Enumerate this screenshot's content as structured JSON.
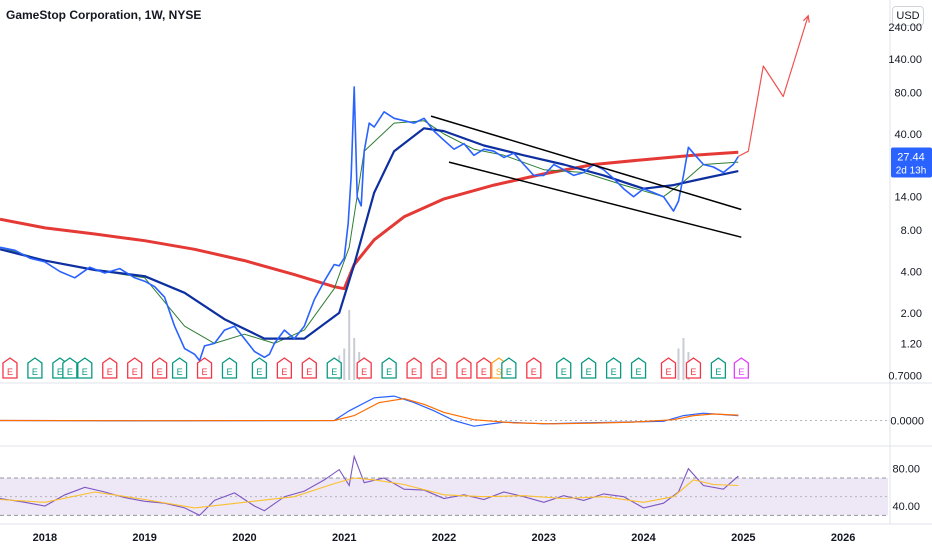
{
  "header": {
    "title": "GameStop Corporation, 1W, NYSE",
    "currency_label": "USD"
  },
  "price_badge": {
    "price": "27.44",
    "countdown": "2d 13h",
    "color": "#2962ff"
  },
  "colors": {
    "price_line": "#2962ff",
    "ma_fast": "#2e7d32",
    "ma_mid": "#0d2fa0",
    "ma_slow": "#e53935",
    "channel": "#000000",
    "projection": "#ef5350",
    "macd": "#2962ff",
    "signal": "#ff6d00",
    "rsi": "#7e57c2",
    "rsi_ma": "#fbc02d",
    "rsi_band": "#ede7f6",
    "earnings_red": "#f23645",
    "earnings_green": "#089981",
    "earnings_purple": "#e040fb",
    "split_yellow": "#f9a825"
  },
  "chart_data": [
    {
      "type": "line",
      "panel": "price",
      "scale": "log",
      "x_ticks": [
        "2018",
        "2019",
        "2020",
        "2021",
        "2022",
        "2023",
        "2024",
        "2025",
        "2026"
      ],
      "x_tick_values": [
        2018,
        2019,
        2020,
        2021,
        2022,
        2023,
        2024,
        2025,
        2026
      ],
      "y_ticks": [
        "240.00",
        "140.00",
        "80.00",
        "40.00",
        "14.00",
        "8.00",
        "4.00",
        "2.00",
        "1.20",
        "0.7000"
      ],
      "y_tick_values": [
        240,
        140,
        80,
        40,
        14,
        8,
        4,
        2,
        1.2,
        0.7
      ],
      "ylim": [
        0.65,
        330
      ],
      "xlim": [
        2017.55,
        2026.45
      ],
      "series": [
        {
          "key": "price",
          "x": [
            2017.55,
            2017.7,
            2017.85,
            2018.0,
            2018.15,
            2018.3,
            2018.45,
            2018.6,
            2018.75,
            2018.9,
            2019.0,
            2019.1,
            2019.2,
            2019.3,
            2019.4,
            2019.5,
            2019.55,
            2019.6,
            2019.7,
            2019.8,
            2019.9,
            2020.0,
            2020.1,
            2020.2,
            2020.25,
            2020.3,
            2020.4,
            2020.5,
            2020.6,
            2020.7,
            2020.8,
            2020.9,
            2020.95,
            2021.0,
            2021.04,
            2021.07,
            2021.1,
            2021.13,
            2021.17,
            2021.2,
            2021.25,
            2021.3,
            2021.4,
            2021.5,
            2021.6,
            2021.7,
            2021.8,
            2021.9,
            2022.0,
            2022.1,
            2022.2,
            2022.3,
            2022.4,
            2022.5,
            2022.6,
            2022.7,
            2022.8,
            2022.9,
            2023.0,
            2023.1,
            2023.2,
            2023.3,
            2023.4,
            2023.5,
            2023.6,
            2023.7,
            2023.8,
            2023.9,
            2024.0,
            2024.1,
            2024.2,
            2024.3,
            2024.35,
            2024.4,
            2024.45,
            2024.5,
            2024.6,
            2024.7,
            2024.8,
            2024.9,
            2024.95
          ],
          "y": [
            6.0,
            5.7,
            5.0,
            4.7,
            4.0,
            3.6,
            4.3,
            3.9,
            4.2,
            3.6,
            3.4,
            3.1,
            2.6,
            1.6,
            1.1,
            1.0,
            0.9,
            1.15,
            1.2,
            1.5,
            1.6,
            1.3,
            1.05,
            0.95,
            1.0,
            1.2,
            1.5,
            1.3,
            1.6,
            2.5,
            3.4,
            4.5,
            4.4,
            5.0,
            9.0,
            20.0,
            88.0,
            14.0,
            12.0,
            30.0,
            48.0,
            45.0,
            58.0,
            52.0,
            50.0,
            48.0,
            52.0,
            42.0,
            36.0,
            31.0,
            34.0,
            28.0,
            31.0,
            30.0,
            27.0,
            29.0,
            24.0,
            20.0,
            20.0,
            24.0,
            22.0,
            20.0,
            21.0,
            24.0,
            22.0,
            19.0,
            16.0,
            14.0,
            16.0,
            15.0,
            14.0,
            11.0,
            13.0,
            20.0,
            32.0,
            29.0,
            24.0,
            23.0,
            21.0,
            24.0,
            27.44
          ]
        },
        {
          "key": "ma_fast",
          "x": [
            2017.55,
            2018.0,
            2018.5,
            2019.0,
            2019.4,
            2019.7,
            2020.0,
            2020.3,
            2020.6,
            2020.9,
            2021.05,
            2021.2,
            2021.5,
            2021.8,
            2022.0,
            2022.3,
            2022.6,
            2023.0,
            2023.4,
            2023.8,
            2024.2,
            2024.4,
            2024.6,
            2024.95
          ],
          "y": [
            6.0,
            4.8,
            4.1,
            3.6,
            1.6,
            1.2,
            1.4,
            1.2,
            1.5,
            3.0,
            6.0,
            30.0,
            48.0,
            50.0,
            40.0,
            31.0,
            28.0,
            22.0,
            21.0,
            17.0,
            14.0,
            18.0,
            24.0,
            25.0
          ]
        },
        {
          "key": "ma_mid",
          "x": [
            2017.55,
            2018.0,
            2018.5,
            2019.0,
            2019.4,
            2019.8,
            2020.2,
            2020.6,
            2020.95,
            2021.1,
            2021.3,
            2021.5,
            2021.8,
            2022.0,
            2022.4,
            2022.8,
            2023.2,
            2023.6,
            2024.0,
            2024.3,
            2024.6,
            2024.95
          ],
          "y": [
            5.8,
            4.8,
            4.1,
            3.7,
            2.8,
            1.8,
            1.3,
            1.3,
            2.0,
            4.5,
            15.0,
            30.0,
            44.0,
            42.0,
            33.0,
            28.0,
            24.0,
            20.0,
            16.0,
            17.0,
            19.0,
            21.5
          ]
        },
        {
          "key": "ma_slow",
          "x": [
            2017.55,
            2018.0,
            2018.5,
            2019.0,
            2019.5,
            2020.0,
            2020.5,
            2020.9,
            2021.0,
            2021.1,
            2021.3,
            2021.6,
            2022.0,
            2022.5,
            2023.0,
            2023.5,
            2024.0,
            2024.5,
            2024.95
          ],
          "y": [
            9.6,
            8.3,
            7.5,
            6.7,
            5.8,
            4.8,
            3.8,
            3.1,
            3.0,
            4.5,
            6.8,
            10.0,
            13.5,
            17.0,
            20.5,
            24.0,
            26.0,
            28.0,
            29.5
          ]
        },
        {
          "key": "channel_upper",
          "x": [
            2021.87,
            2024.98
          ],
          "y": [
            54.0,
            11.3
          ]
        },
        {
          "key": "channel_lower",
          "x": [
            2022.05,
            2024.98
          ],
          "y": [
            25.0,
            7.1
          ]
        },
        {
          "key": "projection",
          "x": [
            2024.95,
            2025.05,
            2025.2,
            2025.4,
            2025.65
          ],
          "y": [
            27.5,
            30.0,
            125.0,
            75.0,
            290.0
          ]
        }
      ]
    },
    {
      "type": "bar",
      "panel": "volume",
      "x": [
        2020.95,
        2021.0,
        2021.05,
        2021.1,
        2021.15,
        2024.35,
        2024.4,
        2024.45
      ],
      "values": [
        0.35,
        0.45,
        1.0,
        0.6,
        0.4,
        0.45,
        0.6,
        0.4
      ]
    },
    {
      "type": "line",
      "panel": "macd",
      "y_ticks": [
        "0.0000"
      ],
      "y_tick_values": [
        0
      ],
      "ylim": [
        -12,
        20
      ],
      "series": [
        {
          "key": "macd",
          "x": [
            2017.55,
            2019.0,
            2020.9,
            2021.05,
            2021.3,
            2021.5,
            2021.7,
            2021.9,
            2022.1,
            2022.3,
            2022.6,
            2023.0,
            2023.4,
            2023.8,
            2024.2,
            2024.4,
            2024.6,
            2024.95
          ],
          "y": [
            0,
            -0.2,
            0,
            6.0,
            14.0,
            15.0,
            11.0,
            6.0,
            0.0,
            -3.5,
            -1.0,
            -2.0,
            -1.5,
            -1.0,
            -0.5,
            3.0,
            4.5,
            3.0
          ]
        },
        {
          "key": "signal",
          "x": [
            2017.55,
            2019.0,
            2020.9,
            2021.1,
            2021.35,
            2021.6,
            2021.8,
            2022.0,
            2022.3,
            2022.7,
            2023.1,
            2023.5,
            2023.9,
            2024.3,
            2024.5,
            2024.7,
            2024.95
          ],
          "y": [
            0,
            -0.1,
            0,
            3.0,
            11.0,
            13.5,
            10.0,
            5.0,
            0.5,
            -1.5,
            -2.0,
            -1.6,
            -1.0,
            0.5,
            3.0,
            4.0,
            3.3
          ]
        }
      ]
    },
    {
      "type": "line",
      "panel": "rsi",
      "y_ticks": [
        "80.00",
        "40.00"
      ],
      "y_tick_values": [
        80,
        40
      ],
      "ylim": [
        25,
        100
      ],
      "band": [
        30,
        70
      ],
      "midline": 50,
      "series": [
        {
          "key": "rsi",
          "x": [
            2017.55,
            2017.8,
            2018.0,
            2018.2,
            2018.4,
            2018.6,
            2018.8,
            2019.0,
            2019.2,
            2019.4,
            2019.55,
            2019.7,
            2019.9,
            2020.1,
            2020.2,
            2020.4,
            2020.6,
            2020.8,
            2020.95,
            2021.05,
            2021.1,
            2021.2,
            2021.4,
            2021.6,
            2021.8,
            2022.0,
            2022.2,
            2022.4,
            2022.6,
            2022.8,
            2023.0,
            2023.2,
            2023.4,
            2023.6,
            2023.8,
            2024.0,
            2024.2,
            2024.35,
            2024.45,
            2024.6,
            2024.8,
            2024.95
          ],
          "y": [
            48,
            44,
            40,
            52,
            60,
            55,
            49,
            45,
            43,
            38,
            30,
            46,
            54,
            40,
            35,
            50,
            56,
            68,
            79,
            62,
            93,
            65,
            70,
            58,
            57,
            48,
            52,
            47,
            55,
            50,
            44,
            51,
            46,
            53,
            50,
            38,
            43,
            55,
            80,
            62,
            58,
            72
          ]
        },
        {
          "key": "rsi_ma",
          "x": [
            2017.55,
            2018.0,
            2018.5,
            2019.0,
            2019.5,
            2020.0,
            2020.5,
            2020.9,
            2021.1,
            2021.3,
            2021.6,
            2022.0,
            2022.4,
            2022.8,
            2023.2,
            2023.6,
            2024.0,
            2024.3,
            2024.5,
            2024.7,
            2024.95
          ],
          "y": [
            47,
            44,
            55,
            47,
            38,
            44,
            50,
            64,
            70,
            68,
            63,
            52,
            50,
            51,
            48,
            50,
            44,
            50,
            68,
            63,
            62
          ]
        }
      ]
    }
  ],
  "earnings_markers": [
    {
      "label": "E",
      "x": 2017.65,
      "color": "#f23645"
    },
    {
      "label": "E",
      "x": 2017.9,
      "color": "#089981"
    },
    {
      "label": "E",
      "x": 2018.15,
      "color": "#089981"
    },
    {
      "label": "E",
      "x": 2018.25,
      "color": "#089981"
    },
    {
      "label": "E",
      "x": 2018.4,
      "color": "#089981"
    },
    {
      "label": "E",
      "x": 2018.65,
      "color": "#f23645"
    },
    {
      "label": "E",
      "x": 2018.9,
      "color": "#f23645"
    },
    {
      "label": "E",
      "x": 2019.15,
      "color": "#f23645"
    },
    {
      "label": "E",
      "x": 2019.35,
      "color": "#089981"
    },
    {
      "label": "E",
      "x": 2019.6,
      "color": "#f23645"
    },
    {
      "label": "E",
      "x": 2019.85,
      "color": "#089981"
    },
    {
      "label": "E",
      "x": 2020.15,
      "color": "#089981"
    },
    {
      "label": "E",
      "x": 2020.4,
      "color": "#f23645"
    },
    {
      "label": "E",
      "x": 2020.65,
      "color": "#f23645"
    },
    {
      "label": "E",
      "x": 2020.9,
      "color": "#089981"
    },
    {
      "label": "E",
      "x": 2021.2,
      "color": "#f23645"
    },
    {
      "label": "E",
      "x": 2021.45,
      "color": "#089981"
    },
    {
      "label": "E",
      "x": 2021.7,
      "color": "#f23645"
    },
    {
      "label": "E",
      "x": 2021.95,
      "color": "#f23645"
    },
    {
      "label": "E",
      "x": 2022.2,
      "color": "#f23645"
    },
    {
      "label": "E",
      "x": 2022.4,
      "color": "#f23645"
    },
    {
      "label": "S",
      "x": 2022.55,
      "color": "#f9a825"
    },
    {
      "label": "E",
      "x": 2022.65,
      "color": "#089981"
    },
    {
      "label": "E",
      "x": 2022.9,
      "color": "#f23645"
    },
    {
      "label": "E",
      "x": 2023.2,
      "color": "#089981"
    },
    {
      "label": "E",
      "x": 2023.45,
      "color": "#089981"
    },
    {
      "label": "E",
      "x": 2023.7,
      "color": "#089981"
    },
    {
      "label": "E",
      "x": 2023.95,
      "color": "#089981"
    },
    {
      "label": "E",
      "x": 2024.25,
      "color": "#f23645"
    },
    {
      "label": "E",
      "x": 2024.5,
      "color": "#f23645"
    },
    {
      "label": "E",
      "x": 2024.75,
      "color": "#089981"
    },
    {
      "label": "E",
      "x": 2024.98,
      "color": "#e040fb"
    }
  ]
}
